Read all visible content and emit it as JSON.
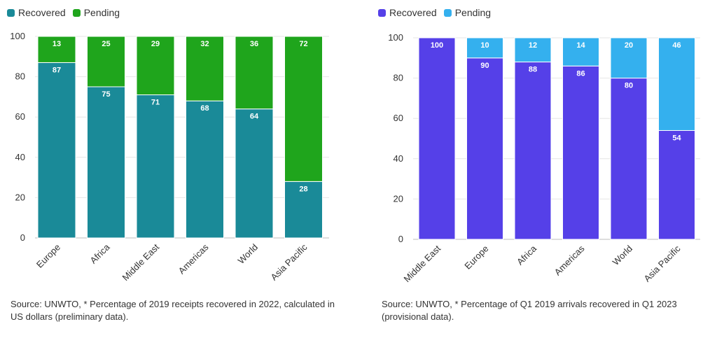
{
  "chart_data": [
    {
      "type": "bar",
      "stacked": true,
      "title": "",
      "xlabel": "",
      "ylabel": "",
      "ylim": [
        0,
        100
      ],
      "yticks": [
        0,
        20,
        40,
        60,
        80,
        100
      ],
      "categories": [
        "Europe",
        "Africa",
        "Middle East",
        "Americas",
        "World",
        "Asia Pacific"
      ],
      "series": [
        {
          "name": "Recovered",
          "color": "#1a8a98",
          "values": [
            87,
            75,
            71,
            68,
            64,
            28
          ]
        },
        {
          "name": "Pending",
          "color": "#1fa51c",
          "values": [
            13,
            25,
            29,
            32,
            36,
            72
          ]
        }
      ],
      "legend": "top-left",
      "source": "Source: UNWTO, * Percentage of 2019 receipts recovered in 2022, calculated in US dollars (preliminary data)."
    },
    {
      "type": "bar",
      "stacked": true,
      "title": "",
      "xlabel": "",
      "ylabel": "",
      "ylim": [
        0,
        100
      ],
      "yticks": [
        0,
        20,
        40,
        60,
        80,
        100
      ],
      "categories": [
        "Middle East",
        "Europe",
        "Africa",
        "Americas",
        "World",
        "Asia Pacific"
      ],
      "series": [
        {
          "name": "Recovered",
          "color": "#5540e8",
          "values": [
            100,
            90,
            88,
            86,
            80,
            54
          ]
        },
        {
          "name": "Pending",
          "color": "#34b0ee",
          "values": [
            0,
            10,
            12,
            14,
            20,
            46
          ]
        }
      ],
      "legend": "top-left",
      "source": "Source: UNWTO, * Percentage of Q1 2019 arrivals recovered in Q1 2023 (provisional data)."
    }
  ]
}
